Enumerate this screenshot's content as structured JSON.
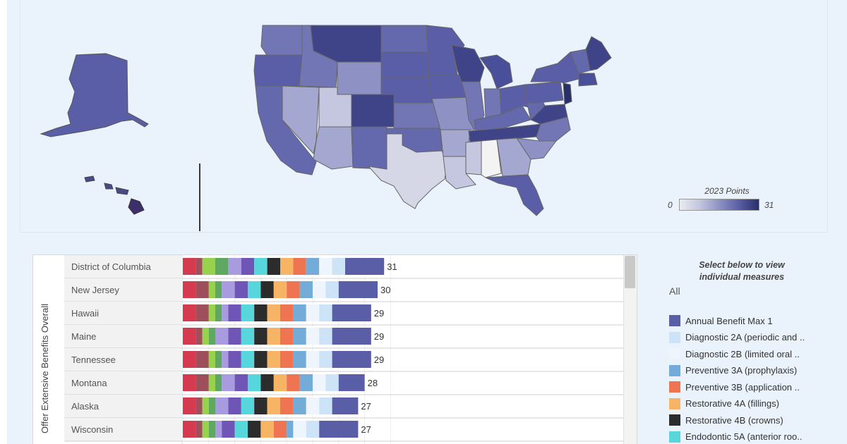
{
  "map": {
    "scale_title": "2023 Points",
    "scale_min": "0",
    "scale_max": "31",
    "colors": {
      "low": "#e9eaf1",
      "high": "#28306a",
      "background": "#eaf2fb"
    }
  },
  "chart": {
    "row_axis_title": "Offer Extensive Benefits Overall"
  },
  "legend": {
    "title": "Select below to view individual measures",
    "all_label": "All",
    "items": [
      {
        "label": "Annual Benefit Max 1",
        "color": "#5a5ea6"
      },
      {
        "label": "Diagnostic 2A (periodic and ..",
        "color": "#cde3f7"
      },
      {
        "label": "Diagnostic 2B (limited oral ..",
        "color": "#eef5fc"
      },
      {
        "label": "Preventive 3A (prophylaxis)",
        "color": "#73acd8"
      },
      {
        "label": "Preventive 3B (application ..",
        "color": "#ee7452"
      },
      {
        "label": "Restorative 4A (fillings)",
        "color": "#f8b465"
      },
      {
        "label": "Restorative 4B (crowns)",
        "color": "#2c2c2c"
      },
      {
        "label": "Endodontic 5A (anterior roo..",
        "color": "#57d6dc"
      }
    ]
  },
  "chart_data": {
    "type": "bar",
    "orientation": "horizontal",
    "stacked": true,
    "categories": [
      "District of Columbia",
      "New Jersey",
      "Hawaii",
      "Maine",
      "Tennessee",
      "Montana",
      "Alaska",
      "Wisconsin"
    ],
    "totals": [
      31,
      30,
      29,
      29,
      29,
      28,
      27,
      27
    ],
    "segments": [
      {
        "color": "#d53a4f",
        "values": [
          2,
          2,
          2,
          2,
          2,
          2,
          2,
          2
        ]
      },
      {
        "color": "#9e4f5b",
        "values": [
          1,
          2,
          2,
          1,
          2,
          2,
          1,
          1
        ]
      },
      {
        "color": "#98d14d",
        "values": [
          2,
          1,
          1,
          1,
          1,
          1,
          1,
          1
        ]
      },
      {
        "color": "#5fa862",
        "values": [
          2,
          1,
          1,
          1,
          1,
          1,
          1,
          1
        ]
      },
      {
        "color": "#a89be0",
        "values": [
          2,
          2,
          1,
          2,
          1,
          2,
          2,
          1
        ]
      },
      {
        "color": "#6f56b6",
        "values": [
          2,
          2,
          2,
          2,
          2,
          2,
          2,
          2
        ]
      },
      {
        "color": "#57d6dc",
        "values": [
          2,
          2,
          2,
          2,
          2,
          2,
          2,
          2
        ]
      },
      {
        "color": "#2c2c2c",
        "values": [
          2,
          2,
          2,
          2,
          2,
          2,
          2,
          2
        ]
      },
      {
        "color": "#f8b465",
        "values": [
          2,
          2,
          2,
          2,
          2,
          2,
          2,
          2
        ]
      },
      {
        "color": "#ee7452",
        "values": [
          2,
          2,
          2,
          2,
          2,
          2,
          2,
          2
        ]
      },
      {
        "color": "#73acd8",
        "values": [
          2,
          2,
          2,
          2,
          2,
          2,
          2,
          1
        ]
      },
      {
        "color": "#eef5fc",
        "values": [
          2,
          2,
          2,
          2,
          2,
          2,
          2,
          2
        ]
      },
      {
        "color": "#cde3f7",
        "values": [
          2,
          2,
          2,
          2,
          2,
          2,
          2,
          2
        ]
      },
      {
        "color": "#5a5ea6",
        "values": [
          6,
          6,
          6,
          6,
          6,
          4,
          4,
          6
        ]
      }
    ]
  }
}
